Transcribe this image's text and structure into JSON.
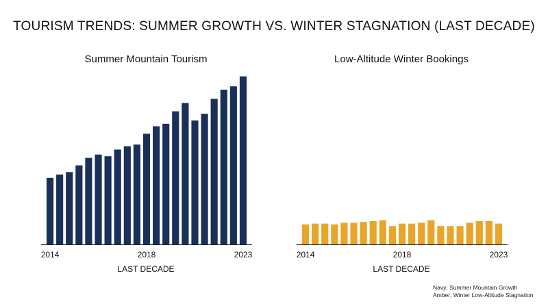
{
  "title": "TOURISM TRENDS: SUMMER GROWTH VS. WINTER STAGNATION (LAST DECADE)",
  "notes": {
    "line1": "Navy: Summer Mountain Growth",
    "line2": "Amber: Winter Low-Altitude Stagnation"
  },
  "colors": {
    "summer": "#1b2f5b",
    "winter": "#e8a52a",
    "axis": "#222222"
  },
  "chart_data": [
    {
      "type": "bar",
      "title": "Summer Mountain Tourism",
      "xlabel": "LAST DECADE",
      "ylabel": "",
      "tick_labels": [
        "2014",
        "2018",
        "2023"
      ],
      "tick_positions": [
        0,
        10,
        20
      ],
      "ylim": [
        0,
        100
      ],
      "grid": false,
      "values": [
        40.0,
        42.0,
        43.5,
        47.5,
        52.0,
        54.0,
        53.0,
        57.0,
        59.0,
        60.0,
        66.5,
        71.0,
        72.5,
        80.0,
        85.0,
        74.5,
        78.5,
        87.5,
        93.0,
        95.0,
        101.0
      ]
    },
    {
      "type": "bar",
      "title": "Low-Altitude Winter Bookings",
      "xlabel": "LAST DECADE",
      "ylabel": "",
      "tick_labels": [
        "2014",
        "2018",
        "2023"
      ],
      "tick_positions": [
        0,
        10,
        20
      ],
      "ylim": [
        0,
        100
      ],
      "grid": false,
      "values": [
        12.0,
        12.5,
        12.5,
        12.0,
        13.0,
        13.0,
        13.5,
        14.0,
        14.5,
        11.0,
        12.5,
        12.5,
        13.0,
        14.5,
        11.0,
        11.0,
        11.0,
        13.0,
        14.0,
        14.0,
        12.5
      ]
    }
  ]
}
